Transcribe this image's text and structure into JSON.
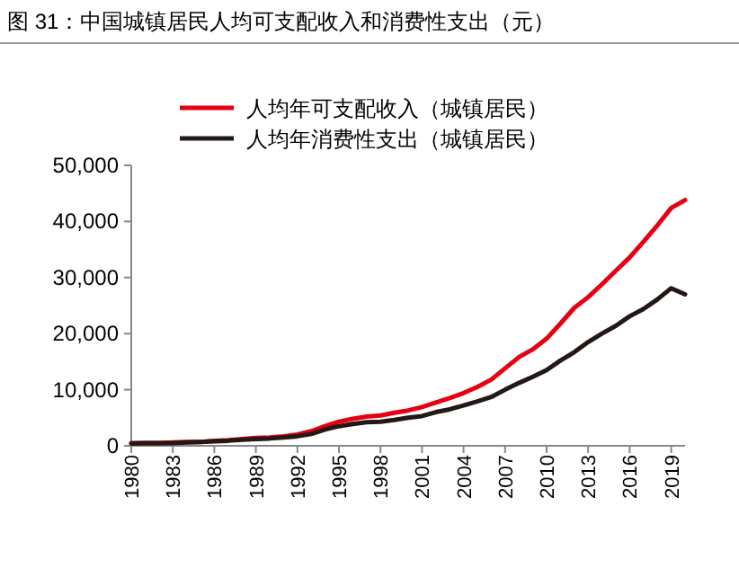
{
  "chart_data": {
    "type": "line",
    "title": "图 31：中国城镇居民人均可支配收入和消费性支出（元）",
    "x": [
      1980,
      1981,
      1982,
      1983,
      1984,
      1985,
      1986,
      1987,
      1988,
      1989,
      1990,
      1991,
      1992,
      1993,
      1994,
      1995,
      1996,
      1997,
      1998,
      1999,
      2000,
      2001,
      2002,
      2003,
      2004,
      2005,
      2006,
      2007,
      2008,
      2009,
      2010,
      2011,
      2012,
      2013,
      2014,
      2015,
      2016,
      2017,
      2018,
      2019,
      2020
    ],
    "series": [
      {
        "name": "人均年可支配收入（城镇居民）",
        "color": "#e60012",
        "values": [
          500,
          500,
          500,
          600,
          700,
          700,
          900,
          1000,
          1200,
          1400,
          1500,
          1700,
          2000,
          2600,
          3500,
          4300,
          4800,
          5200,
          5400,
          5900,
          6300,
          6900,
          7700,
          8500,
          9400,
          10500,
          11800,
          13800,
          15800,
          17200,
          19100,
          21800,
          24600,
          26500,
          28800,
          31200,
          33600,
          36400,
          39300,
          42400,
          43800
        ]
      },
      {
        "name": "人均年消费性支出（城镇居民）",
        "color": "#231815",
        "values": [
          400,
          500,
          500,
          500,
          600,
          700,
          800,
          900,
          1100,
          1200,
          1300,
          1500,
          1700,
          2100,
          2900,
          3500,
          3900,
          4200,
          4300,
          4600,
          5000,
          5300,
          6000,
          6500,
          7200,
          7900,
          8700,
          10000,
          11200,
          12300,
          13500,
          15200,
          16700,
          18500,
          20000,
          21400,
          23100,
          24400,
          26100,
          28100,
          27000
        ]
      }
    ],
    "xlim": [
      1980,
      2020
    ],
    "ylim": [
      0,
      50000
    ],
    "xticks": [
      1980,
      1983,
      1986,
      1989,
      1992,
      1995,
      1998,
      2001,
      2004,
      2007,
      2010,
      2013,
      2016,
      2019
    ],
    "yticks": [
      {
        "value": 0,
        "label": "0"
      },
      {
        "value": 10000,
        "label": "10,000"
      },
      {
        "value": 20000,
        "label": "20,000"
      },
      {
        "value": 30000,
        "label": "30,000"
      },
      {
        "value": 40000,
        "label": "40,000"
      },
      {
        "value": 50000,
        "label": "50,000"
      }
    ],
    "legend": "top"
  }
}
